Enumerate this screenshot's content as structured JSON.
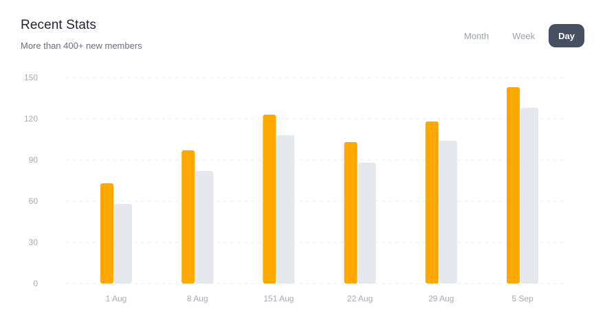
{
  "header": {
    "title": "Recent Stats",
    "subtitle": "More than 400+ new members"
  },
  "range_tabs": [
    {
      "label": "Month",
      "active": false
    },
    {
      "label": "Week",
      "active": false
    },
    {
      "label": "Day",
      "active": true
    }
  ],
  "colors": {
    "series_primary": "#FFA800",
    "series_secondary": "#E4E8EC",
    "grid": "#E9ECF0",
    "tick_text": "#A6ABB6",
    "active_tab_bg": "#475063"
  },
  "chart_data": {
    "type": "bar",
    "categories": [
      "1 Aug",
      "8 Aug",
      "151 Aug",
      "22 Aug",
      "29 Aug",
      "5 Sep"
    ],
    "series": [
      {
        "values": [
          73,
          97,
          123,
          103,
          118,
          143
        ]
      },
      {
        "values": [
          58,
          82,
          108,
          88,
          104,
          128
        ]
      }
    ],
    "ylim": [
      0,
      150
    ],
    "yticks": [
      0,
      30,
      60,
      90,
      120,
      150
    ],
    "grid": true,
    "grid_style": "dashed"
  }
}
